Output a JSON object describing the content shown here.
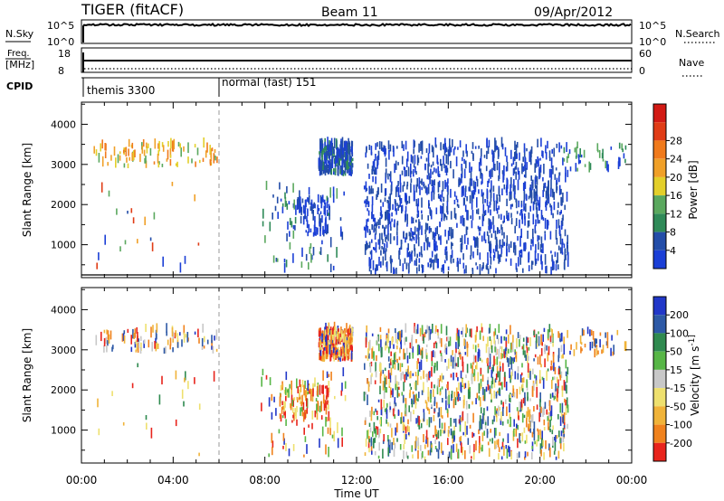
{
  "header": {
    "station": "TIGER (fitACF)",
    "beam": "Beam 11",
    "date": "09/Apr/2012"
  },
  "top_panels": {
    "nsky": {
      "label": "N.Sky",
      "right_label": "N.Search",
      "left_ticks": [
        "10^5",
        "10^0"
      ],
      "right_ticks": [
        "10^5",
        "10^0"
      ]
    },
    "freq": {
      "label": "Freq.",
      "unit": "[MHz]",
      "left_ticks": [
        "18",
        "8"
      ],
      "right_label": "Nave",
      "right_ticks": [
        "60",
        "0"
      ]
    },
    "cpid": {
      "label": "CPID",
      "segments": [
        {
          "label": "themis 3300",
          "start_hour": 0
        },
        {
          "label": "normal (fast) 151",
          "start_hour": 6
        }
      ]
    }
  },
  "chart_data": [
    {
      "type": "heatmap",
      "title": "Power",
      "xlabel": "Time UT",
      "ylabel": "Slant Range [km]",
      "xlim_hours": [
        0,
        24
      ],
      "ylim": [
        180,
        4550
      ],
      "x_tick_labels": [
        "00:00",
        "04:00",
        "08:00",
        "12:00",
        "16:00",
        "20:00",
        "00:00"
      ],
      "y_ticks": [
        1000,
        2000,
        3000,
        4000
      ],
      "colorbar": {
        "label": "Power [dB]",
        "ticks": [
          "4",
          "8",
          "12",
          "16",
          "20",
          "24",
          "28"
        ],
        "colors": [
          "#1b3fd6",
          "#234da8",
          "#2f8a58",
          "#5aa85e",
          "#e3cf2a",
          "#f0a028",
          "#f07a1c",
          "#e03c16",
          "#d21a14"
        ]
      },
      "scatter_regions": [
        {
          "t0": 0.5,
          "t1": 5.9,
          "r0": 2900,
          "r1": 3450,
          "n": 95,
          "levels": [
            3,
            4,
            5,
            6
          ]
        },
        {
          "t0": 0.5,
          "t1": 6.0,
          "r0": 300,
          "r1": 2700,
          "n": 22,
          "levels": [
            0,
            1,
            3,
            5,
            7
          ]
        },
        {
          "t0": 9.2,
          "t1": 10.8,
          "r0": 1200,
          "r1": 2100,
          "n": 90,
          "levels": [
            0,
            0,
            1
          ]
        },
        {
          "t0": 10.3,
          "t1": 11.8,
          "r0": 2700,
          "r1": 3450,
          "n": 260,
          "levels": [
            0,
            0,
            1,
            1,
            2
          ]
        },
        {
          "t0": 7.8,
          "t1": 11.5,
          "r0": 300,
          "r1": 2400,
          "n": 70,
          "levels": [
            0,
            1,
            2,
            3
          ]
        },
        {
          "t0": 12.3,
          "t1": 21.2,
          "r0": 250,
          "r1": 3450,
          "n": 1100,
          "levels": [
            0,
            0,
            1,
            1
          ]
        },
        {
          "t0": 21.0,
          "t1": 23.8,
          "r0": 2800,
          "r1": 3400,
          "n": 40,
          "levels": [
            0,
            2,
            3
          ]
        }
      ]
    },
    {
      "type": "heatmap",
      "title": "Velocity",
      "xlabel": "Time UT",
      "ylabel": "Slant Range [km]",
      "xlim_hours": [
        0,
        24
      ],
      "ylim": [
        180,
        4550
      ],
      "x_tick_labels": [
        "00:00",
        "04:00",
        "08:00",
        "12:00",
        "16:00",
        "20:00",
        "00:00"
      ],
      "y_ticks": [
        1000,
        2000,
        3000,
        4000
      ],
      "colorbar": {
        "label": "Velocity [m s^-1]",
        "ticks": [
          "200",
          "100",
          "50",
          "15",
          "-15",
          "-50",
          "-100",
          "-200"
        ],
        "colors": [
          "#2137c8",
          "#2d59a6",
          "#2f8a4f",
          "#57b646",
          "#c8c8c8",
          "#eee06e",
          "#f0b339",
          "#f0821d",
          "#e8241c"
        ]
      },
      "scatter_regions": [
        {
          "t0": 0.5,
          "t1": 5.9,
          "r0": 2900,
          "r1": 3450,
          "n": 95,
          "levels": [
            0,
            1,
            4,
            5,
            6,
            7,
            8
          ]
        },
        {
          "t0": 0.5,
          "t1": 6.0,
          "r0": 300,
          "r1": 2700,
          "n": 22,
          "levels": [
            2,
            5,
            6,
            8
          ]
        },
        {
          "t0": 8.6,
          "t1": 10.8,
          "r0": 1200,
          "r1": 2100,
          "n": 110,
          "levels": [
            3,
            5,
            6,
            7,
            8
          ]
        },
        {
          "t0": 10.3,
          "t1": 11.8,
          "r0": 2700,
          "r1": 3450,
          "n": 260,
          "levels": [
            0,
            5,
            6,
            7,
            8,
            8
          ]
        },
        {
          "t0": 7.8,
          "t1": 11.5,
          "r0": 300,
          "r1": 2400,
          "n": 70,
          "levels": [
            0,
            3,
            5,
            7,
            8
          ]
        },
        {
          "t0": 12.3,
          "t1": 21.2,
          "r0": 250,
          "r1": 3450,
          "n": 1100,
          "levels": [
            0,
            1,
            2,
            3,
            4,
            5,
            6,
            7,
            8
          ]
        },
        {
          "t0": 21.0,
          "t1": 23.8,
          "r0": 2800,
          "r1": 3400,
          "n": 40,
          "levels": [
            0,
            1,
            6,
            7
          ]
        }
      ]
    }
  ]
}
